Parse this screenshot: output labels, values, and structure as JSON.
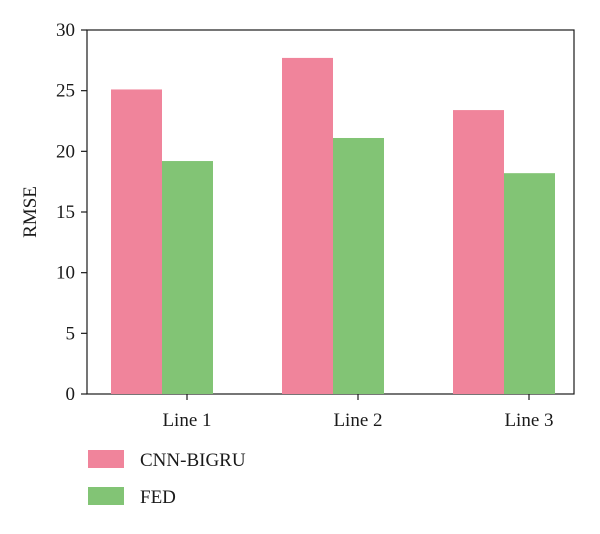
{
  "chart_data": {
    "type": "bar",
    "title": "",
    "xlabel": "",
    "ylabel": "RMSE",
    "categories": [
      "Line 1",
      "Line 2",
      "Line 3"
    ],
    "series": [
      {
        "name": "CNN-BIGRU",
        "color": "#f0849b",
        "values": [
          25.1,
          27.7,
          23.4
        ]
      },
      {
        "name": "FED",
        "color": "#82c475",
        "values": [
          19.2,
          21.1,
          18.2
        ]
      }
    ],
    "ylim": [
      0,
      30
    ],
    "yticks": [
      0,
      5,
      10,
      15,
      20,
      25,
      30
    ],
    "grid": false,
    "legend_position": "bottom-left"
  }
}
